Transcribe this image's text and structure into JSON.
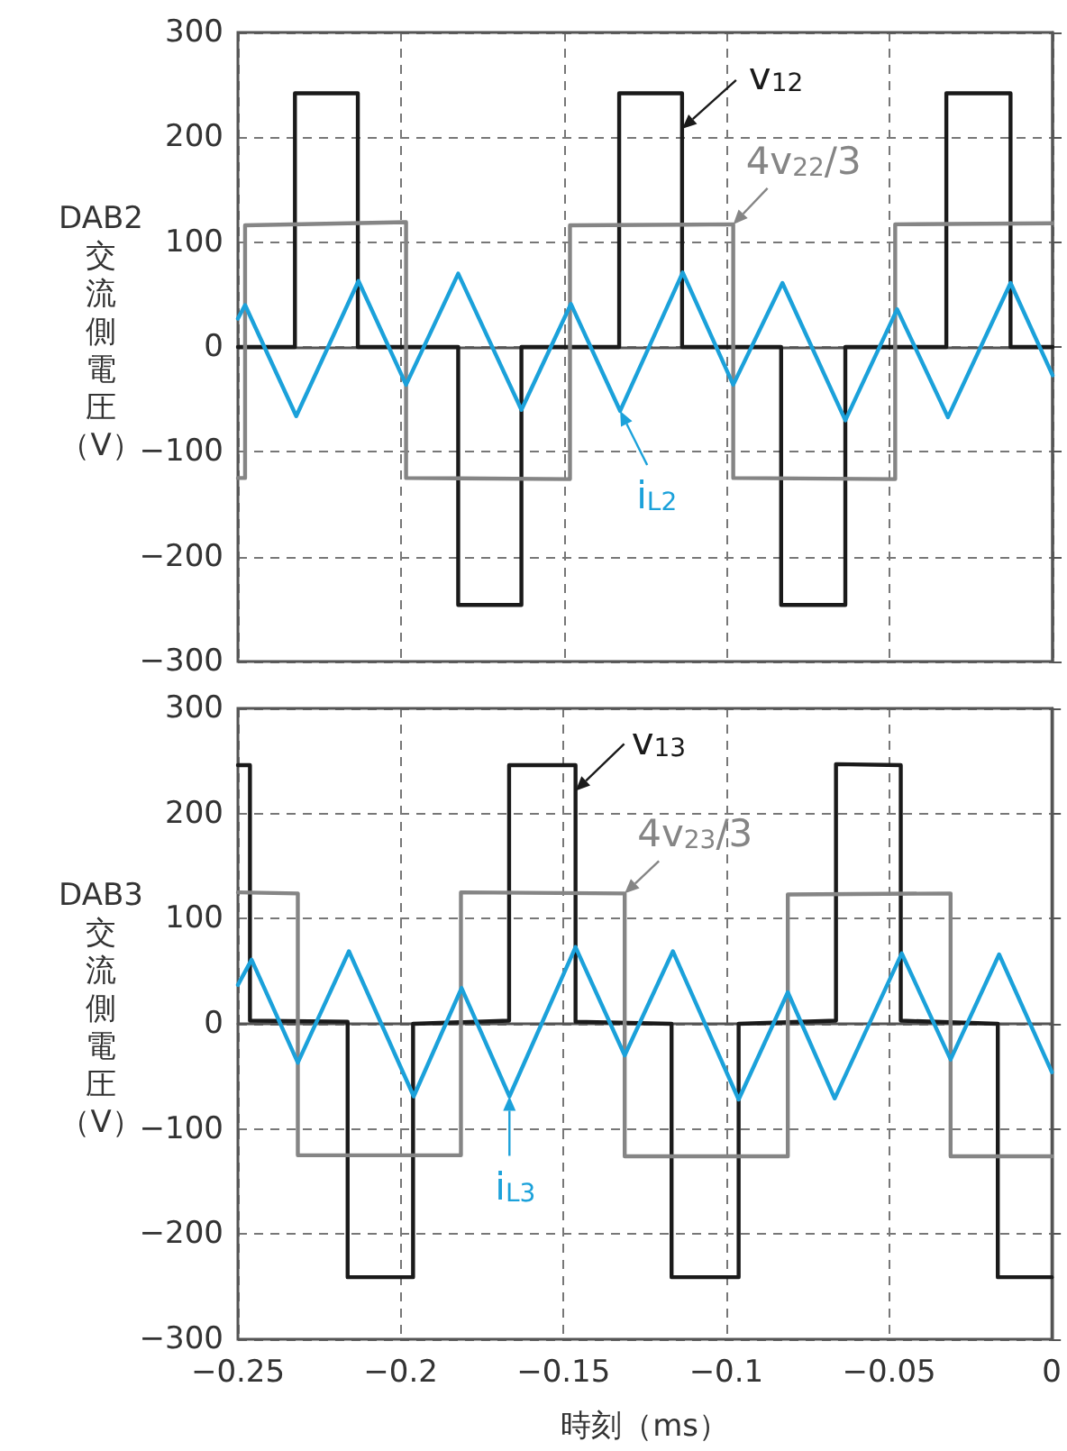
{
  "chart_data": [
    {
      "type": "line",
      "ylabel": "DAB2\n交流側電圧（V）",
      "xlim": [
        -0.25,
        0
      ],
      "ylim": [
        -300,
        300
      ],
      "xticks": [
        -0.25,
        -0.2,
        -0.15,
        -0.1,
        -0.05,
        0
      ],
      "yticks": [
        {
          "value": -300,
          "label": "−300"
        },
        {
          "value": -200,
          "label": "−200"
        },
        {
          "value": -100,
          "label": "−100"
        },
        0,
        100,
        200,
        300
      ],
      "tick_labels": "y",
      "grid": true,
      "marker": "none",
      "series": [
        {
          "name": "v$_{12}$",
          "color": "#1a1a1a",
          "x": [
            -0.25,
            -0.2325,
            -0.2325,
            -0.2132,
            -0.2132,
            -0.1824,
            -0.1824,
            -0.163,
            -0.163,
            -0.133,
            -0.133,
            -0.1137,
            -0.1137,
            -0.0833,
            -0.0833,
            -0.0636,
            -0.0636,
            -0.0326,
            -0.0326,
            -0.0129,
            -0.0129,
            0
          ],
          "values": [
            0,
            0,
            242,
            242,
            0,
            0,
            -246,
            -246,
            0,
            0,
            242,
            242,
            0,
            0,
            -246,
            -246,
            0,
            0,
            242,
            242,
            0,
            0
          ]
        },
        {
          "name": "4v$_{22}$/3",
          "color": "#858585",
          "x": [
            -0.25,
            -0.2478,
            -0.2478,
            -0.1984,
            -0.1984,
            -0.1481,
            -0.1481,
            -0.098,
            -0.098,
            -0.0483,
            -0.0483,
            0
          ],
          "values": [
            -125,
            -125,
            116,
            119,
            -125,
            -126,
            116,
            117,
            -125,
            -126,
            117,
            118
          ]
        },
        {
          "name": "i$_{L2}$",
          "color": "#1ba1da",
          "x": [
            -0.25,
            -0.2478,
            -0.2321,
            -0.213,
            -0.1984,
            -0.1824,
            -0.163,
            -0.1478,
            -0.1327,
            -0.1135,
            -0.098,
            -0.0829,
            -0.0636,
            -0.0477,
            -0.0321,
            -0.0129,
            0
          ],
          "values": [
            27,
            40,
            -66,
            63,
            -36,
            70,
            -60,
            41,
            -61,
            71,
            -36,
            61,
            -70,
            36,
            -67,
            61,
            -27
          ]
        }
      ]
    },
    {
      "type": "line",
      "ylabel": "DAB3\n交流側電圧（V）",
      "xlabel": "時刻（ms）",
      "xlim": [
        -0.25,
        0
      ],
      "ylim": [
        -300,
        300
      ],
      "xticks": [
        {
          "value": -0.25,
          "label": "−0.25"
        },
        {
          "value": -0.2,
          "label": "−0.2"
        },
        {
          "value": -0.15,
          "label": "−0.15"
        },
        {
          "value": -0.1,
          "label": "−0.1"
        },
        {
          "value": -0.05,
          "label": "−0.05"
        },
        0
      ],
      "yticks": [
        {
          "value": -300,
          "label": "−300"
        },
        {
          "value": -200,
          "label": "−200"
        },
        {
          "value": -100,
          "label": "−100"
        },
        0,
        100,
        200,
        300
      ],
      "grid": true,
      "marker": "none",
      "series": [
        {
          "name": "v$_{13}$",
          "color": "#1a1a1a",
          "x": [
            -0.25,
            -0.2463,
            -0.2463,
            -0.2163,
            -0.2163,
            -0.1962,
            -0.1962,
            -0.1667,
            -0.1667,
            -0.1463,
            -0.1463,
            -0.1168,
            -0.1168,
            -0.0962,
            -0.0962,
            -0.0663,
            -0.0663,
            -0.0464,
            -0.0464,
            -0.0166,
            -0.0166,
            0
          ],
          "values": [
            246,
            246,
            3,
            2,
            -241,
            -241,
            0,
            3,
            246,
            246,
            2,
            0,
            -241,
            -241,
            0,
            3,
            247,
            246,
            3,
            0,
            -241,
            -241
          ]
        },
        {
          "name": "4v$_{23}$/3",
          "color": "#858585",
          "x": [
            -0.25,
            -0.2316,
            -0.2316,
            -0.1815,
            -0.1815,
            -0.1312,
            -0.1312,
            -0.0811,
            -0.0811,
            -0.0311,
            -0.0311,
            0
          ],
          "values": [
            125,
            124,
            -125,
            -125,
            125,
            124,
            -126,
            -126,
            123,
            124,
            -126,
            -126
          ]
        },
        {
          "name": "i$_{L3}$",
          "color": "#1ba1da",
          "x": [
            -0.25,
            -0.2458,
            -0.2316,
            -0.2159,
            -0.196,
            -0.1813,
            -0.1666,
            -0.1463,
            -0.1312,
            -0.1164,
            -0.0962,
            -0.0811,
            -0.0667,
            -0.0461,
            -0.0311,
            -0.0162,
            0
          ],
          "values": [
            37,
            61,
            -37,
            69,
            -69,
            34,
            -69,
            73,
            -30,
            69,
            -72,
            30,
            -71,
            67,
            -34,
            66,
            -46
          ]
        }
      ]
    }
  ]
}
